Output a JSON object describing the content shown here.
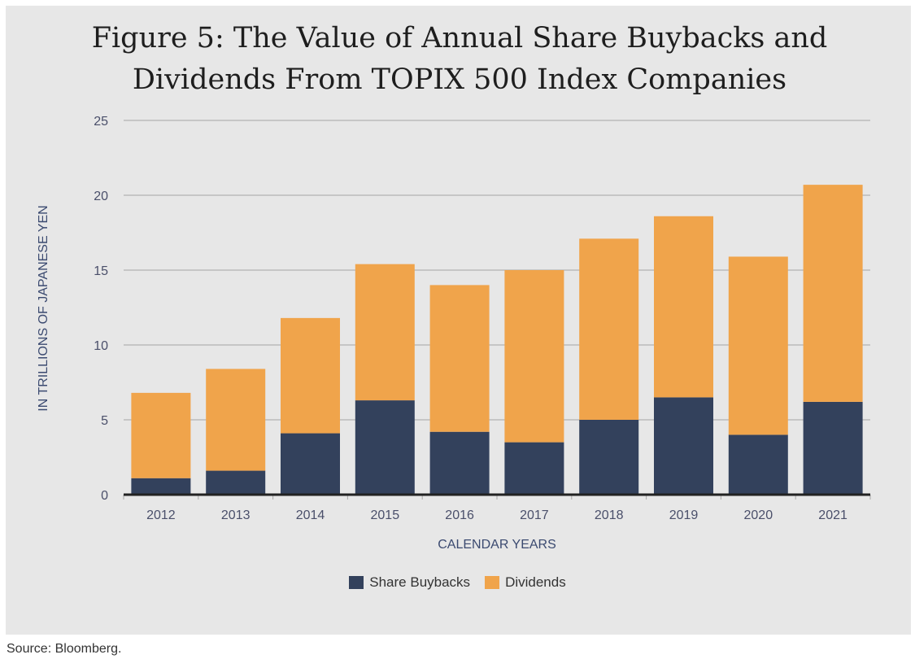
{
  "chart_data": {
    "type": "bar",
    "stacked": true,
    "title": "Figure 5: The Value of Annual Share Buybacks and Dividends From TOPIX 500 Index Companies",
    "title_lines": [
      "Figure 5: The Value of Annual Share Buybacks and",
      "Dividends From TOPIX 500 Index Companies"
    ],
    "xlabel": "CALENDAR YEARS",
    "ylabel": "IN TRILLIONS OF JAPANESE YEN",
    "ylim": [
      0,
      25
    ],
    "yticks": [
      "0",
      "5",
      "10",
      "15",
      "20",
      "25"
    ],
    "grid": true,
    "legend_position": "bottom",
    "categories": [
      "2012",
      "2013",
      "2014",
      "2015",
      "2016",
      "2017",
      "2018",
      "2019",
      "2020",
      "2021"
    ],
    "series": [
      {
        "name": "Share Buybacks",
        "color": "#33415c",
        "values": [
          1.1,
          1.6,
          4.1,
          6.3,
          4.2,
          3.5,
          5.0,
          6.5,
          4.0,
          6.2
        ]
      },
      {
        "name": "Dividends",
        "color": "#f0a44b",
        "values": [
          5.7,
          6.8,
          7.7,
          9.1,
          9.8,
          11.5,
          12.1,
          12.1,
          11.9,
          14.5
        ]
      }
    ]
  },
  "source": "Source: Bloomberg."
}
